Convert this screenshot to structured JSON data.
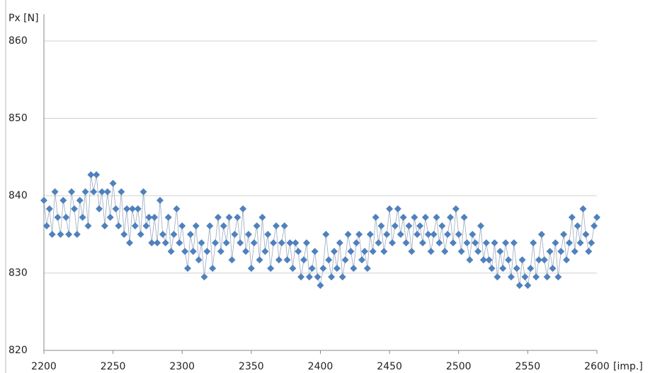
{
  "chart_data": {
    "type": "line-scatter",
    "y_label": "Px [N]",
    "x_label": "[imp.]",
    "color": "#4f81bd",
    "line_color": "#9aa8bd",
    "grid": true,
    "xlim": [
      2200,
      2600
    ],
    "xticks": [
      2200,
      2250,
      2300,
      2350,
      2400,
      2450,
      2500,
      2550,
      2600
    ],
    "ylim": [
      820,
      860
    ],
    "yticks": [
      820,
      830,
      840,
      850,
      860
    ],
    "x": [
      2200,
      2202,
      2204,
      2206,
      2208,
      2210,
      2212,
      2214,
      2216,
      2218,
      2220,
      2222,
      2224,
      2226,
      2228,
      2230,
      2232,
      2234,
      2236,
      2238,
      2240,
      2242,
      2244,
      2246,
      2248,
      2250,
      2252,
      2254,
      2256,
      2258,
      2260,
      2262,
      2264,
      2266,
      2268,
      2270,
      2272,
      2274,
      2276,
      2278,
      2280,
      2282,
      2284,
      2286,
      2288,
      2290,
      2292,
      2294,
      2296,
      2298,
      2300,
      2302,
      2304,
      2306,
      2308,
      2310,
      2312,
      2314,
      2316,
      2318,
      2320,
      2322,
      2324,
      2326,
      2328,
      2330,
      2332,
      2334,
      2336,
      2338,
      2340,
      2342,
      2344,
      2346,
      2348,
      2350,
      2352,
      2354,
      2356,
      2358,
      2360,
      2362,
      2364,
      2366,
      2368,
      2370,
      2372,
      2374,
      2376,
      2378,
      2380,
      2382,
      2384,
      2386,
      2388,
      2390,
      2392,
      2394,
      2396,
      2398,
      2400,
      2402,
      2404,
      2406,
      2408,
      2410,
      2412,
      2414,
      2416,
      2418,
      2420,
      2422,
      2424,
      2426,
      2428,
      2430,
      2432,
      2434,
      2436,
      2438,
      2440,
      2442,
      2444,
      2446,
      2448,
      2450,
      2452,
      2454,
      2456,
      2458,
      2460,
      2462,
      2464,
      2466,
      2468,
      2470,
      2472,
      2474,
      2476,
      2478,
      2480,
      2482,
      2484,
      2486,
      2488,
      2490,
      2492,
      2494,
      2496,
      2498,
      2500,
      2502,
      2504,
      2506,
      2508,
      2510,
      2512,
      2514,
      2516,
      2518,
      2520,
      2522,
      2524,
      2526,
      2528,
      2530,
      2532,
      2534,
      2536,
      2538,
      2540,
      2542,
      2544,
      2546,
      2548,
      2550,
      2552,
      2554,
      2556,
      2558,
      2560,
      2562,
      2564,
      2566,
      2568,
      2570,
      2572,
      2574,
      2576,
      2578,
      2580,
      2582,
      2584,
      2586,
      2588,
      2590,
      2592,
      2594,
      2596,
      2598,
      2600
    ],
    "values": [
      839.4,
      836.1,
      838.3,
      835.0,
      840.5,
      837.2,
      835.0,
      839.4,
      837.2,
      835.0,
      840.5,
      838.3,
      835.0,
      839.4,
      837.2,
      840.5,
      836.1,
      842.7,
      840.5,
      842.7,
      838.3,
      840.5,
      836.1,
      840.5,
      837.2,
      841.6,
      838.3,
      836.1,
      840.5,
      835.0,
      838.3,
      833.9,
      838.3,
      836.1,
      838.3,
      835.0,
      840.5,
      836.1,
      837.2,
      833.9,
      837.2,
      833.9,
      839.4,
      835.0,
      833.9,
      837.2,
      832.8,
      835.0,
      838.3,
      833.9,
      836.1,
      832.8,
      830.6,
      835.0,
      832.8,
      836.1,
      831.7,
      833.9,
      829.5,
      832.8,
      836.1,
      830.6,
      833.9,
      837.2,
      832.8,
      836.1,
      833.9,
      837.2,
      831.7,
      835.0,
      837.2,
      833.9,
      838.3,
      832.8,
      835.0,
      830.6,
      833.9,
      836.1,
      831.7,
      837.2,
      832.8,
      835.0,
      830.6,
      833.9,
      836.1,
      831.7,
      833.9,
      836.1,
      831.7,
      833.9,
      830.6,
      833.9,
      832.8,
      829.5,
      831.7,
      833.9,
      829.5,
      830.6,
      832.8,
      829.5,
      828.4,
      830.6,
      835.0,
      831.7,
      829.5,
      832.8,
      830.6,
      833.9,
      829.5,
      831.7,
      835.0,
      832.8,
      830.6,
      833.9,
      835.0,
      831.7,
      832.8,
      830.6,
      835.0,
      832.8,
      837.2,
      833.9,
      836.1,
      832.8,
      835.0,
      838.3,
      833.9,
      836.1,
      838.3,
      835.0,
      837.2,
      833.9,
      836.1,
      832.8,
      837.2,
      835.0,
      836.1,
      833.9,
      837.2,
      835.0,
      832.8,
      835.0,
      837.2,
      833.9,
      836.1,
      832.8,
      835.0,
      837.2,
      833.9,
      838.3,
      835.0,
      832.8,
      837.2,
      833.9,
      831.7,
      835.0,
      833.9,
      832.8,
      836.1,
      831.7,
      833.9,
      831.7,
      830.6,
      833.9,
      829.5,
      832.8,
      830.6,
      833.9,
      831.7,
      829.5,
      833.9,
      830.6,
      828.4,
      831.7,
      829.5,
      828.4,
      830.6,
      833.9,
      829.5,
      831.7,
      835.0,
      831.7,
      829.5,
      832.8,
      830.6,
      833.9,
      829.5,
      832.8,
      835.0,
      831.7,
      833.9,
      837.2,
      832.8,
      836.1,
      833.9,
      838.3,
      835.0,
      832.8,
      833.9,
      836.1,
      837.2
    ]
  }
}
